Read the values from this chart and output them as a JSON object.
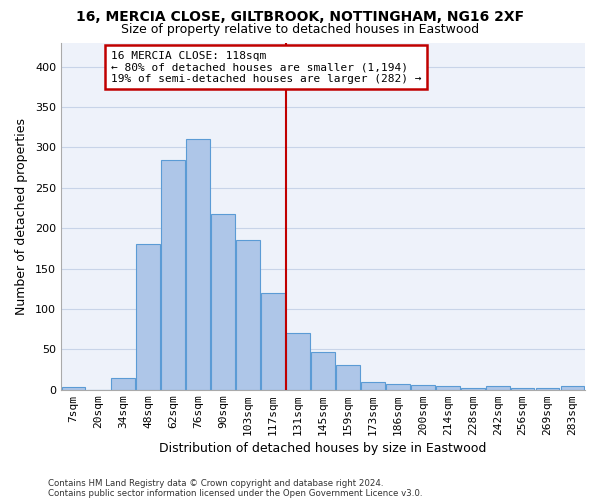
{
  "title1": "16, MERCIA CLOSE, GILTBROOK, NOTTINGHAM, NG16 2XF",
  "title2": "Size of property relative to detached houses in Eastwood",
  "xlabel": "Distribution of detached houses by size in Eastwood",
  "ylabel": "Number of detached properties",
  "footnote1": "Contains HM Land Registry data © Crown copyright and database right 2024.",
  "footnote2": "Contains public sector information licensed under the Open Government Licence v3.0.",
  "annotation_line1": "16 MERCIA CLOSE: 118sqm",
  "annotation_line2": "← 80% of detached houses are smaller (1,194)",
  "annotation_line3": "19% of semi-detached houses are larger (282) →",
  "bar_labels": [
    "7sqm",
    "20sqm",
    "34sqm",
    "48sqm",
    "62sqm",
    "76sqm",
    "90sqm",
    "103sqm",
    "117sqm",
    "131sqm",
    "145sqm",
    "159sqm",
    "173sqm",
    "186sqm",
    "200sqm",
    "214sqm",
    "228sqm",
    "242sqm",
    "256sqm",
    "269sqm",
    "283sqm"
  ],
  "bar_values": [
    3,
    0,
    15,
    180,
    285,
    310,
    218,
    185,
    120,
    70,
    47,
    31,
    10,
    7,
    6,
    5,
    2,
    4,
    2,
    2,
    4
  ],
  "bar_color": "#aec6e8",
  "bar_edge_color": "#5b9bd5",
  "vline_index": 8.5,
  "vline_color": "#c00000",
  "annotation_box_edge_color": "#c00000",
  "bg_color": "#eef2fa",
  "ylim": [
    0,
    430
  ],
  "yticks": [
    0,
    50,
    100,
    150,
    200,
    250,
    300,
    350,
    400
  ],
  "grid_color": "#c8d4e8",
  "title1_fontsize": 10,
  "title2_fontsize": 9,
  "xlabel_fontsize": 9,
  "ylabel_fontsize": 9,
  "tick_fontsize": 8,
  "annot_fontsize": 8
}
